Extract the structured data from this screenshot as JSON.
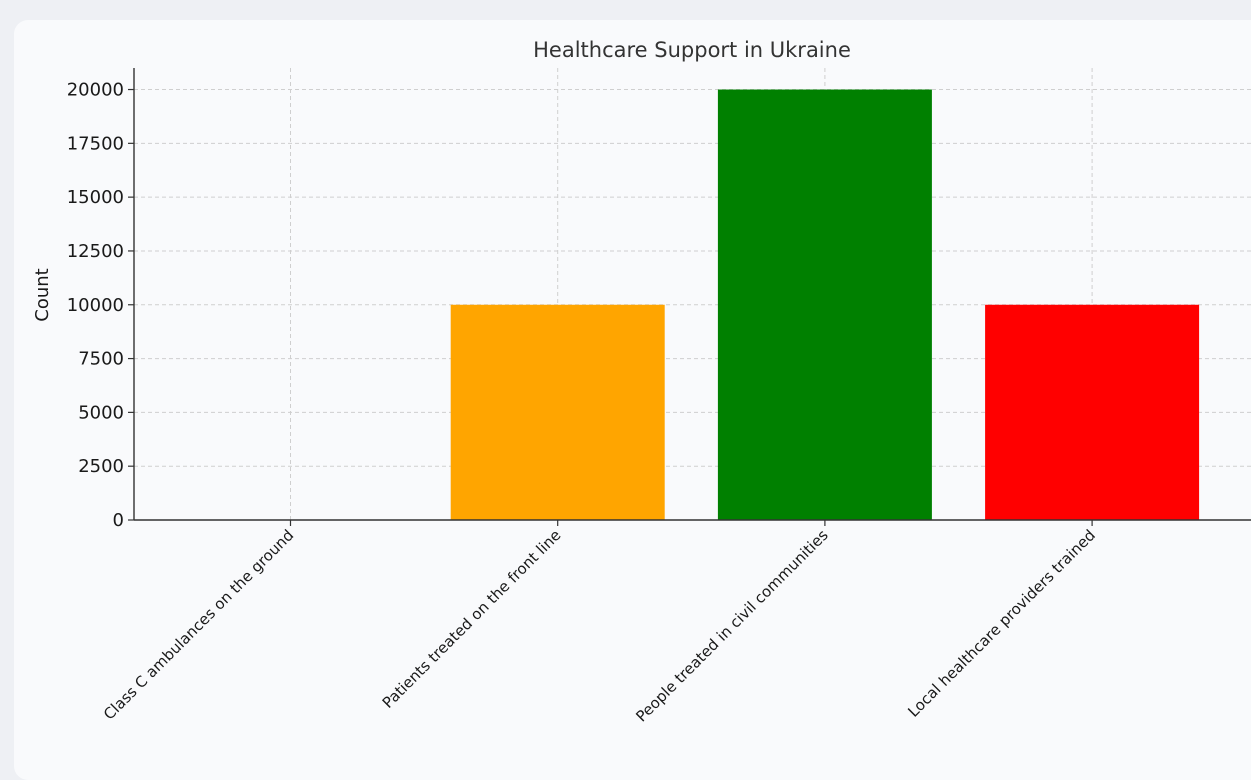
{
  "chart_data": {
    "type": "bar",
    "title": "Healthcare Support in Ukraine",
    "xlabel": "",
    "ylabel": "Count",
    "categories": [
      "Class C ambulances on the ground",
      "Patients treated on the front line",
      "People treated in civil communities",
      "Local healthcare providers trained"
    ],
    "values": [
      0,
      10000,
      20000,
      10000
    ],
    "colors": [
      "#1f77b4",
      "#ffa500",
      "#008000",
      "#ff0000"
    ],
    "ylim": [
      0,
      21000
    ],
    "yticks": [
      0,
      2500,
      5000,
      7500,
      10000,
      12500,
      15000,
      17500,
      20000
    ],
    "grid": true,
    "legend": "none"
  }
}
